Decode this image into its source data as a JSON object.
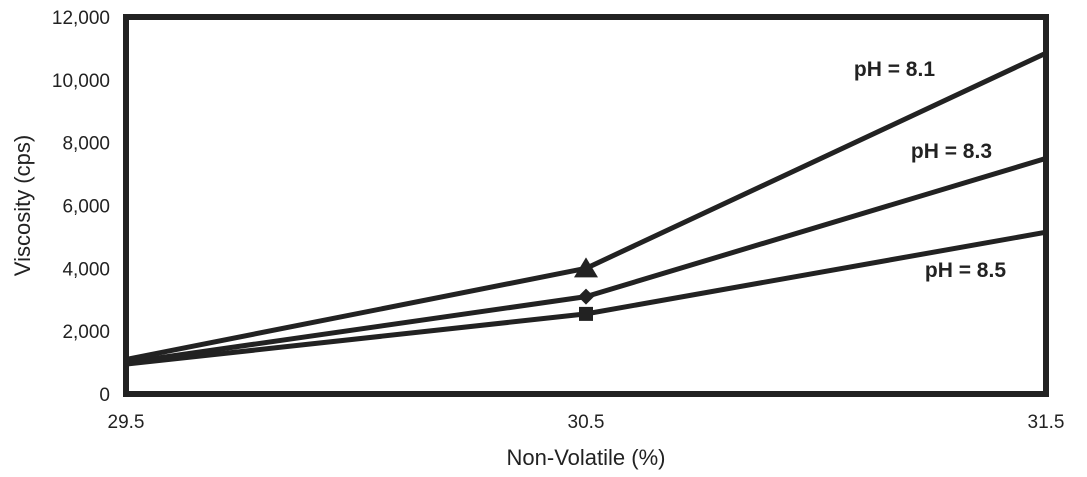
{
  "chart_data": {
    "type": "line",
    "title": "",
    "xlabel": "Non-Volatile (%)",
    "ylabel": "Viscosity (cps)",
    "x": [
      29.5,
      30.5,
      31.5
    ],
    "xlim": [
      29.5,
      31.5
    ],
    "ylim": [
      0,
      12000
    ],
    "x_ticks": [
      29.5,
      30.5,
      31.5
    ],
    "x_tick_labels": [
      "29.5",
      "30.5",
      "31.5"
    ],
    "y_ticks": [
      0,
      2000,
      4000,
      6000,
      8000,
      10000,
      12000
    ],
    "y_tick_labels": [
      "0",
      "2,000",
      "4,000",
      "6,000",
      "8,000",
      "10,000",
      "12,000"
    ],
    "grid": false,
    "legend": "none",
    "series": [
      {
        "name": "pH = 8.1",
        "marker": "triangle",
        "values": [
          1100,
          4000,
          10850
        ]
      },
      {
        "name": "pH = 8.3",
        "marker": "diamond",
        "values": [
          1000,
          3100,
          7500
        ]
      },
      {
        "name": "pH = 8.5",
        "marker": "square",
        "values": [
          950,
          2550,
          5150
        ]
      }
    ],
    "colors": {
      "line": "#222222",
      "frame": "#222222",
      "text": "#222222"
    }
  }
}
